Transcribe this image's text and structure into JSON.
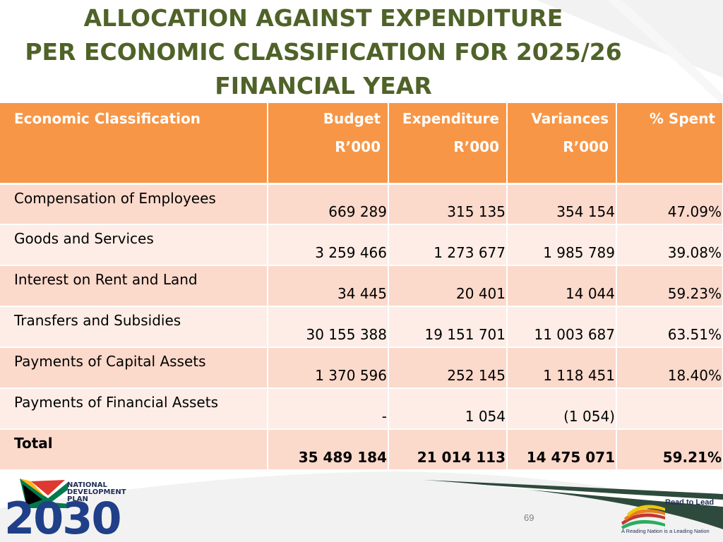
{
  "title": {
    "line1": "ALLOCATION AGAINST EXPENDITURE",
    "line2": "PER ECONOMIC CLASSIFICATION FOR 2025/26",
    "line3": "FINANCIAL YEAR"
  },
  "colors": {
    "title": "#4f6228",
    "header_bg": "#f79646",
    "row_odd": "#fbd9cb",
    "row_even": "#fdede6"
  },
  "table": {
    "headers": {
      "classification": "Economic Classification",
      "budget": "Budget",
      "budget_unit": "R’000",
      "expenditure": "Expenditure",
      "expenditure_unit": "R’000",
      "variances": "Variances",
      "variances_unit": "R’000",
      "spent": "% Spent"
    },
    "rows": [
      {
        "label": "Compensation of Employees",
        "budget": "669 289",
        "expenditure": "315 135",
        "variance": "354 154",
        "spent": "47.09%"
      },
      {
        "label": "Goods and Services",
        "budget": "3 259 466",
        "expenditure": "1 273 677",
        "variance": "1 985 789",
        "spent": "39.08%"
      },
      {
        "label": "Interest on Rent and Land",
        "budget": "34 445",
        "expenditure": "20 401",
        "variance": "14 044",
        "spent": "59.23%"
      },
      {
        "label": "Transfers and Subsidies",
        "budget": "30 155 388",
        "expenditure": "19 151 701",
        "variance": "11 003 687",
        "spent": "63.51%"
      },
      {
        "label": "Payments of Capital Assets",
        "budget": "1 370 596",
        "expenditure": "252 145",
        "variance": "1 118 451",
        "spent": "18.40%"
      },
      {
        "label": "Payments of Financial Assets",
        "budget": "-",
        "expenditure": "1 054",
        "variance": "(1 054)",
        "spent": ""
      }
    ],
    "total": {
      "label": "Total",
      "budget": "35 489 184",
      "expenditure": "21 014 113",
      "variance": "14 475 071",
      "spent": "59.21%"
    }
  },
  "footer": {
    "page_number": "69",
    "ndp_line1": "NATIONAL",
    "ndp_line2": "DEVELOPMENT",
    "ndp_line3": "PLAN",
    "ndp_year": "2030",
    "rtl_title": "Read to Lead",
    "rtl_tagline": "A Reading Nation is a Leading Nation"
  }
}
